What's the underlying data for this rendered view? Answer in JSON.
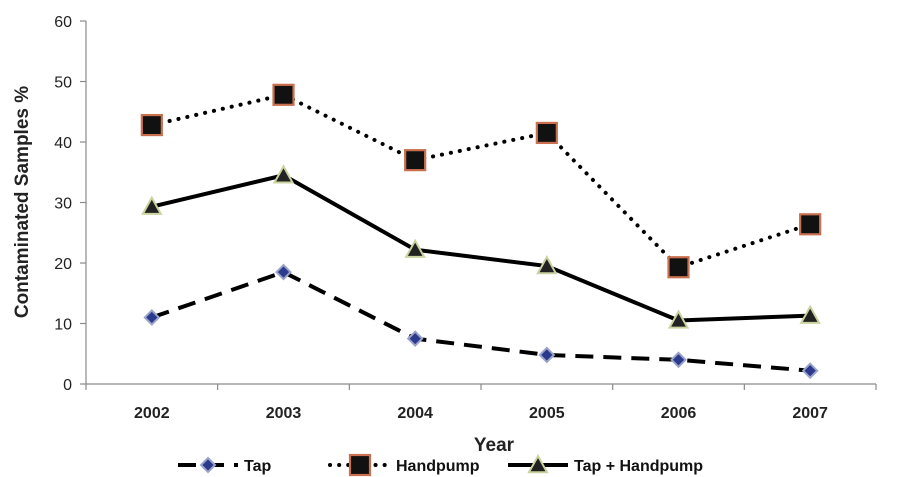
{
  "chart_data": {
    "type": "line",
    "title": "",
    "xlabel": "Year",
    "ylabel": "Contaminated Samples %",
    "categories": [
      "2002",
      "2003",
      "2004",
      "2005",
      "2006",
      "2007"
    ],
    "ylim": [
      0,
      60
    ],
    "yticks": [
      "0",
      "10",
      "20",
      "30",
      "40",
      "50",
      "60"
    ],
    "grid": false,
    "legend": "bottom",
    "series": [
      {
        "name": "Tap",
        "values": [
          11,
          18.5,
          7.5,
          4.8,
          4,
          2.2
        ],
        "line_style": "dashed",
        "marker": "diamond",
        "color": "#000000",
        "marker_fill": "#2b3a8c",
        "marker_edge": "#9aa4c8"
      },
      {
        "name": "Handpump",
        "values": [
          42.8,
          47.8,
          37,
          41.5,
          19.3,
          26.4
        ],
        "line_style": "dotted",
        "marker": "square",
        "color": "#000000",
        "marker_fill": "#111111",
        "marker_edge": "#c8704f"
      },
      {
        "name": "Tap + Handpump",
        "values": [
          29.3,
          34.5,
          22.2,
          19.5,
          10.5,
          11.3
        ],
        "line_style": "solid",
        "marker": "triangle",
        "color": "#000000",
        "marker_fill": "#222222",
        "marker_edge": "#c9d3a0"
      }
    ]
  }
}
